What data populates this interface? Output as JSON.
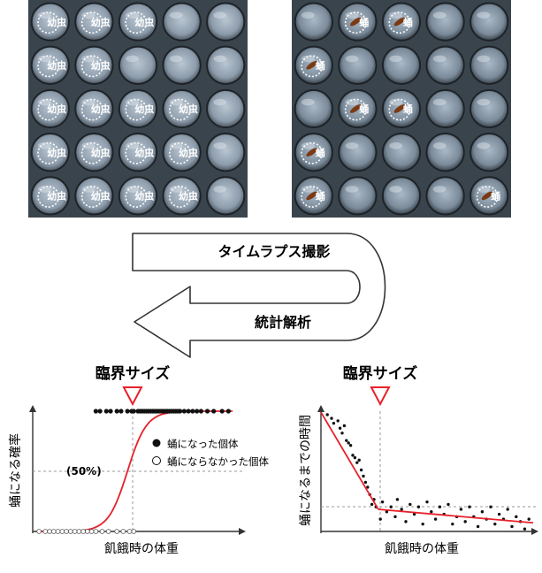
{
  "photos": {
    "larva_label": "幼虫",
    "pupa_label": "蛹",
    "left_labels": [
      [
        "幼虫",
        "幼虫",
        "幼虫",
        "",
        ""
      ],
      [
        "幼虫",
        "幼虫",
        "",
        "",
        ""
      ],
      [
        "幼虫",
        "幼虫",
        "幼虫",
        "幼虫",
        ""
      ],
      [
        "幼虫",
        "幼虫",
        "幼虫",
        "幼虫",
        ""
      ],
      [
        "幼虫",
        "幼虫",
        "幼虫",
        "幼虫",
        ""
      ]
    ],
    "right_labels": [
      [
        "",
        "蛹",
        "蛹",
        "",
        ""
      ],
      [
        "蛹",
        "",
        "",
        "",
        ""
      ],
      [
        "",
        "蛹",
        "蛹",
        "",
        ""
      ],
      [
        "蛹",
        "",
        "",
        "",
        ""
      ],
      [
        "蛹",
        "",
        "",
        "",
        "蛹"
      ]
    ]
  },
  "flow": {
    "step1": "タイムラプス撮影",
    "step2": "統計解析"
  },
  "colors": {
    "curve": "#e8202a",
    "marker": "#e8202a",
    "points": "#111111"
  },
  "critical_size_label_left": "臨界サイズ",
  "critical_size_label_right": "臨界サイズ",
  "chart_data": [
    {
      "type": "scatter",
      "xlabel": "飢餓時の体重",
      "ylabel": "蛹になる確率",
      "annotation": "(50%)",
      "legend": [
        {
          "marker": "filled",
          "label": "蛹になった個体"
        },
        {
          "marker": "open",
          "label": "蛹にならなかった個体"
        }
      ],
      "legend_position": "right",
      "grid": false,
      "xlim": [
        0,
        1
      ],
      "ylim": [
        0,
        1
      ],
      "threshold_x": 0.45,
      "curve": {
        "model": "logistic",
        "midpoint": 0.45,
        "steepness": 22
      },
      "pupated_x": [
        0.3,
        0.32,
        0.35,
        0.37,
        0.4,
        0.42,
        0.45,
        0.47,
        0.48,
        0.5,
        0.51,
        0.52,
        0.53,
        0.54,
        0.55,
        0.56,
        0.57,
        0.58,
        0.59,
        0.6,
        0.61,
        0.62,
        0.63,
        0.64,
        0.65,
        0.66,
        0.67,
        0.68,
        0.69,
        0.7,
        0.72,
        0.74,
        0.76,
        0.78,
        0.8,
        0.83,
        0.86,
        0.9,
        0.93
      ],
      "not_pupated_x": [
        0.03,
        0.06,
        0.08,
        0.1,
        0.12,
        0.14,
        0.16,
        0.18,
        0.2,
        0.22,
        0.24,
        0.26,
        0.28,
        0.3,
        0.33,
        0.36,
        0.4,
        0.43,
        0.46,
        0.48
      ]
    },
    {
      "type": "scatter",
      "xlabel": "飢餓時の体重",
      "ylabel": "蛹になるまでの時間",
      "grid": false,
      "xlim": [
        0,
        1
      ],
      "ylim": [
        0,
        1
      ],
      "threshold_x": 0.27,
      "segments": [
        {
          "x": [
            0.0,
            0.27
          ],
          "y": [
            0.97,
            0.18
          ]
        },
        {
          "x": [
            0.27,
            1.0
          ],
          "y": [
            0.18,
            0.07
          ]
        }
      ],
      "points": [
        [
          0.03,
          0.95
        ],
        [
          0.05,
          0.92
        ],
        [
          0.06,
          0.88
        ],
        [
          0.08,
          0.9
        ],
        [
          0.09,
          0.84
        ],
        [
          0.1,
          0.8
        ],
        [
          0.11,
          0.86
        ],
        [
          0.12,
          0.74
        ],
        [
          0.13,
          0.72
        ],
        [
          0.14,
          0.7
        ],
        [
          0.15,
          0.62
        ],
        [
          0.16,
          0.6
        ],
        [
          0.17,
          0.56
        ],
        [
          0.18,
          0.58
        ],
        [
          0.19,
          0.5
        ],
        [
          0.2,
          0.45
        ],
        [
          0.21,
          0.4
        ],
        [
          0.22,
          0.36
        ],
        [
          0.23,
          0.3
        ],
        [
          0.24,
          0.22
        ],
        [
          0.25,
          0.26
        ],
        [
          0.26,
          0.2
        ],
        [
          0.28,
          0.1
        ],
        [
          0.29,
          0.24
        ],
        [
          0.31,
          0.16
        ],
        [
          0.33,
          0.2
        ],
        [
          0.35,
          0.12
        ],
        [
          0.36,
          0.26
        ],
        [
          0.38,
          0.18
        ],
        [
          0.4,
          0.08
        ],
        [
          0.42,
          0.22
        ],
        [
          0.44,
          0.14
        ],
        [
          0.46,
          0.2
        ],
        [
          0.48,
          0.06
        ],
        [
          0.5,
          0.24
        ],
        [
          0.52,
          0.16
        ],
        [
          0.54,
          0.1
        ],
        [
          0.56,
          0.2
        ],
        [
          0.58,
          0.14
        ],
        [
          0.6,
          0.22
        ],
        [
          0.62,
          0.06
        ],
        [
          0.64,
          0.12
        ],
        [
          0.66,
          0.18
        ],
        [
          0.68,
          0.08
        ],
        [
          0.7,
          0.2
        ],
        [
          0.72,
          0.12
        ],
        [
          0.74,
          0.04
        ],
        [
          0.76,
          0.16
        ],
        [
          0.78,
          0.1
        ],
        [
          0.8,
          0.2
        ],
        [
          0.82,
          0.06
        ],
        [
          0.84,
          0.14
        ],
        [
          0.86,
          0.1
        ],
        [
          0.88,
          0.18
        ],
        [
          0.9,
          0.04
        ],
        [
          0.92,
          0.12
        ],
        [
          0.94,
          0.08
        ],
        [
          0.96,
          0.02
        ],
        [
          0.98,
          0.1
        ]
      ]
    }
  ]
}
